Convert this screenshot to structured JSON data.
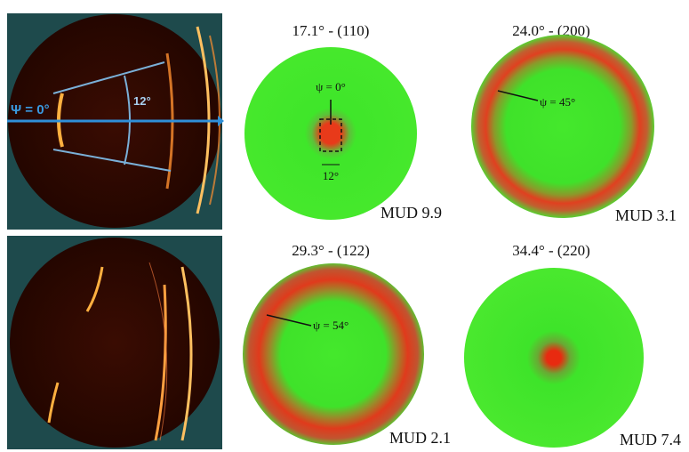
{
  "diffraction_image": {
    "psi_label": "Ψ = 0°",
    "angle_label": "12°"
  },
  "pole_figures": [
    {
      "title": "17.1° - (110)",
      "annotation": "ψ = 0°",
      "angle_label": "12°",
      "mud": "MUD 9.9"
    },
    {
      "title": "24.0° - (200)",
      "annotation": "ψ = 45°",
      "mud": "MUD 3.1"
    },
    {
      "title": "29.3° - (122)",
      "annotation": "ψ = 54°",
      "mud": "MUD 2.1"
    },
    {
      "title": "34.4° - (220)",
      "mud": "MUD 7.4"
    }
  ]
}
